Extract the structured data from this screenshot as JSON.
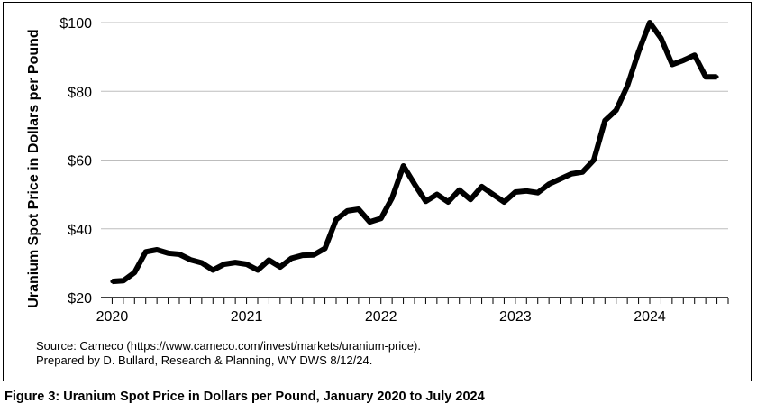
{
  "chart_data": {
    "type": "line",
    "title": "",
    "xlabel": "",
    "ylabel": "Uranium Spot Price in Dollars per Pound",
    "ylim": [
      20,
      100
    ],
    "xlim": [
      "2019-12",
      "2024-08"
    ],
    "yticks": [
      "$20",
      "$40",
      "$60",
      "$80",
      "$100"
    ],
    "xticks": [
      "2020",
      "2021",
      "2022",
      "2023",
      "2024"
    ],
    "grid": "horizontal",
    "series": [
      {
        "x": [
          "2020-01",
          "2020-02",
          "2020-03",
          "2020-04",
          "2020-05",
          "2020-06",
          "2020-07",
          "2020-08",
          "2020-09",
          "2020-10",
          "2020-11",
          "2020-12",
          "2021-01",
          "2021-02",
          "2021-03",
          "2021-04",
          "2021-05",
          "2021-06",
          "2021-07",
          "2021-08",
          "2021-09",
          "2021-10",
          "2021-11",
          "2021-12",
          "2022-01",
          "2022-02",
          "2022-03",
          "2022-04",
          "2022-05",
          "2022-06",
          "2022-07",
          "2022-08",
          "2022-09",
          "2022-10",
          "2022-11",
          "2022-12",
          "2023-01",
          "2023-02",
          "2023-03",
          "2023-04",
          "2023-05",
          "2023-06",
          "2023-07",
          "2023-08",
          "2023-09",
          "2023-10",
          "2023-11",
          "2023-12",
          "2024-01",
          "2024-02",
          "2024-03",
          "2024-04",
          "2024-05",
          "2024-06",
          "2024-07"
        ],
        "values": [
          24.7,
          24.9,
          27.3,
          33.3,
          33.9,
          32.9,
          32.6,
          31.0,
          30.1,
          28.0,
          29.7,
          30.2,
          29.7,
          28.0,
          30.9,
          28.9,
          31.4,
          32.3,
          32.4,
          34.3,
          42.7,
          45.2,
          45.7,
          42.0,
          43.0,
          49.0,
          58.3,
          53.0,
          48.0,
          50.0,
          47.8,
          51.3,
          48.5,
          52.3,
          50.0,
          47.8,
          50.7,
          51.0,
          50.5,
          53.0,
          54.5,
          56.0,
          56.5,
          60.0,
          71.5,
          74.5,
          81.5,
          91.5,
          100.0,
          95.5,
          87.8,
          89.0,
          90.5,
          84.2,
          84.2
        ]
      }
    ]
  },
  "source_line1": "Source: Cameco (https://www.cameco.com/invest/markets/uranium-price).",
  "source_line2": "Prepared by D. Bullard, Research & Planning, WY DWS 8/12/24.",
  "caption": "Figure 3: Uranium Spot Price in Dollars per Pound, January 2020 to July 2024"
}
